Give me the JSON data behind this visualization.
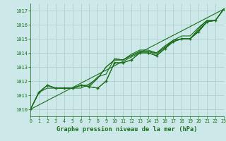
{
  "background_color": "#cce8e8",
  "grid_color": "#aacccc",
  "line_color": "#1a6e1a",
  "title": "Graphe pression niveau de la mer (hPa)",
  "xlim": [
    0,
    23
  ],
  "ylim": [
    1009.5,
    1017.5
  ],
  "yticks": [
    1010,
    1011,
    1012,
    1013,
    1014,
    1015,
    1016,
    1017
  ],
  "xticks": [
    0,
    1,
    2,
    3,
    4,
    5,
    6,
    7,
    8,
    9,
    10,
    11,
    12,
    13,
    14,
    15,
    16,
    17,
    18,
    19,
    20,
    21,
    22,
    23
  ],
  "series_smooth": [
    [
      1010.0,
      1011.2,
      1011.7,
      1011.5,
      1011.5,
      1011.5,
      1011.7,
      1012.3,
      1013.0,
      1013.5,
      1013.8,
      1014.1,
      1014.2,
      1014.2,
      1014.0,
      1014.4,
      1014.9,
      1015.1,
      1015.2,
      1015.8,
      1016.3,
      1016.4,
      1017.1
    ],
    [
      1010.0,
      1017.1
    ]
  ],
  "series_jagged_x": [
    0,
    1,
    2,
    3,
    4,
    5,
    6,
    7,
    8,
    9,
    10,
    11,
    12,
    13,
    14,
    15,
    16,
    17,
    18,
    19,
    20,
    21,
    22,
    23
  ],
  "series_jagged": [
    [
      1010.0,
      1011.2,
      1011.7,
      1011.5,
      1011.5,
      1011.5,
      1011.7,
      1011.6,
      1011.5,
      1012.0,
      1013.3,
      1013.3,
      1013.5,
      1014.0,
      1014.0,
      1013.8,
      1014.3,
      1014.8,
      1015.0,
      1015.0,
      1015.5,
      1016.2,
      1016.3,
      1017.1
    ],
    [
      1010.0,
      1011.2,
      1011.7,
      1011.5,
      1011.5,
      1011.5,
      1011.7,
      1011.6,
      1012.2,
      1013.0,
      1013.5,
      1013.5,
      1013.8,
      1014.1,
      1014.1,
      1014.0,
      1014.5,
      1014.9,
      1015.2,
      1015.2,
      1015.8,
      1016.3,
      1016.3,
      1017.1
    ],
    [
      1010.0,
      1011.2,
      1011.5,
      1011.5,
      1011.5,
      1011.5,
      1011.5,
      1011.8,
      1012.2,
      1013.0,
      1013.5,
      1013.5,
      1013.8,
      1014.1,
      1014.1,
      1013.9,
      1014.4,
      1014.8,
      1015.0,
      1015.0,
      1015.6,
      1016.2,
      1016.3,
      1017.1
    ],
    [
      1010.0,
      1011.2,
      1011.7,
      1011.5,
      1011.5,
      1011.5,
      1011.7,
      1011.7,
      1012.3,
      1012.5,
      1013.6,
      1013.5,
      1013.9,
      1014.2,
      1014.2,
      1014.0,
      1014.4,
      1014.9,
      1015.0,
      1015.0,
      1015.7,
      1016.3,
      1016.3,
      1017.1
    ]
  ],
  "marker_x": [
    0,
    1,
    2,
    3,
    4,
    5,
    6,
    7,
    8,
    9,
    10,
    11,
    12,
    13,
    14,
    15,
    16,
    17,
    18,
    19,
    20,
    21,
    22,
    23
  ],
  "marker_y": [
    1010.0,
    1011.2,
    1011.7,
    1011.5,
    1011.5,
    1011.5,
    1011.7,
    1011.6,
    1011.5,
    1012.0,
    1013.3,
    1013.3,
    1013.5,
    1014.0,
    1014.0,
    1013.8,
    1014.3,
    1014.8,
    1015.0,
    1015.0,
    1015.5,
    1016.2,
    1016.3,
    1017.1
  ]
}
